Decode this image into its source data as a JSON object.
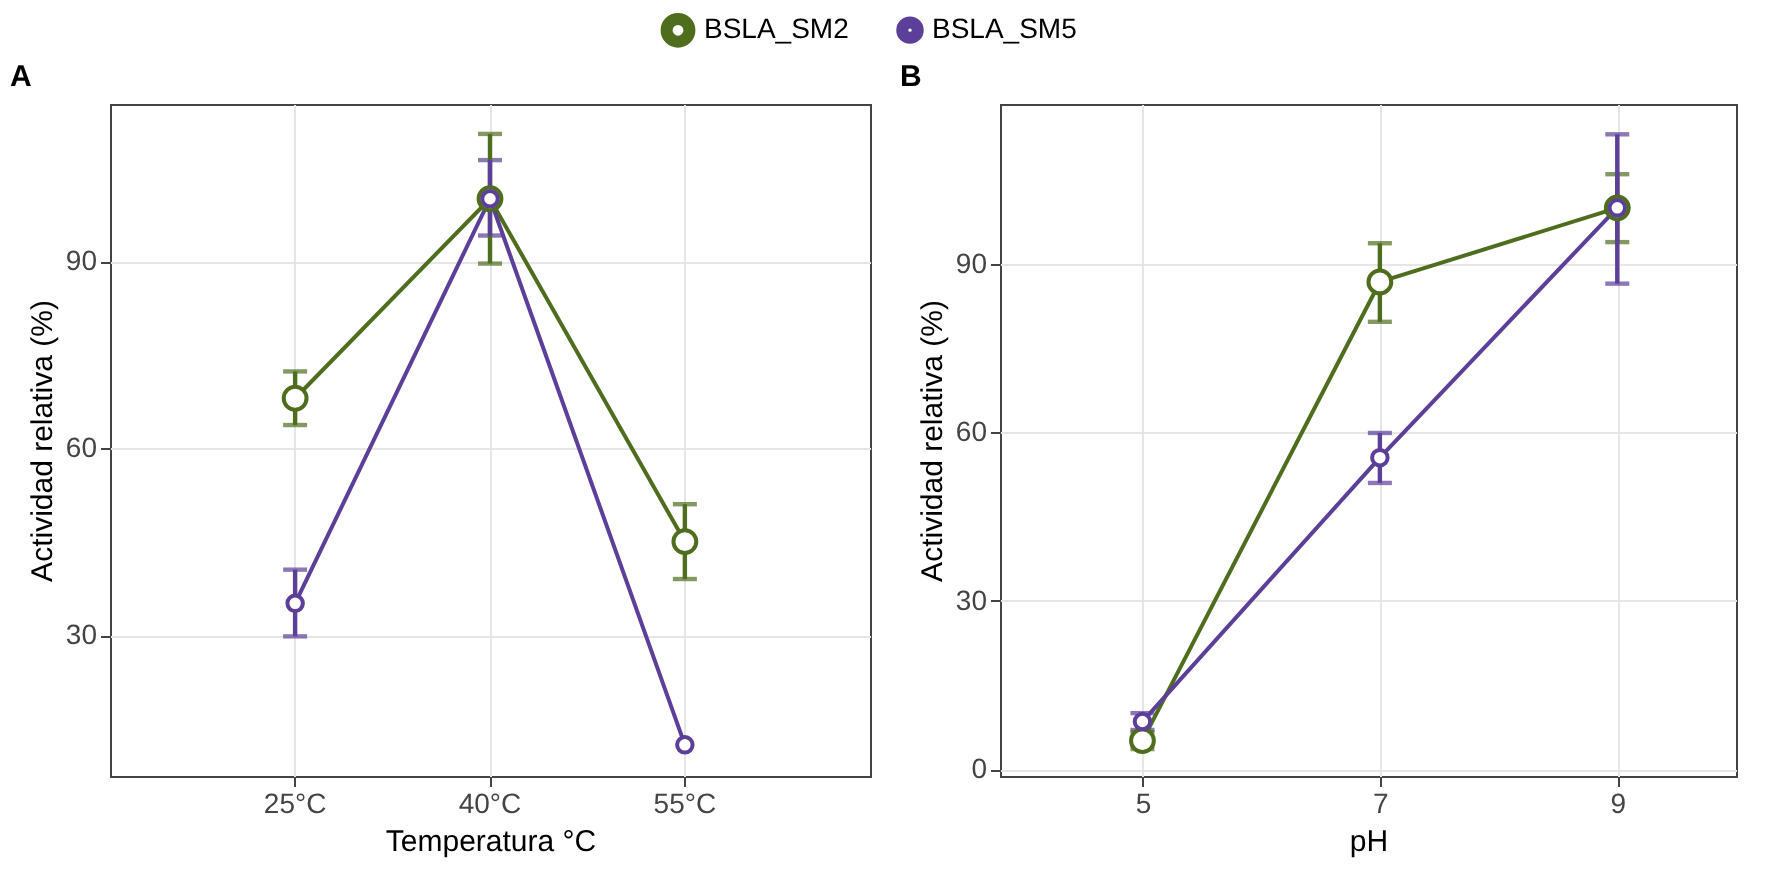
{
  "chart_data": [
    {
      "type": "line",
      "title": "A",
      "xlabel": "Temperatura °C",
      "ylabel": "Actividad relativa (%)",
      "categories": [
        "25°C",
        "40°C",
        "55°C"
      ],
      "ylim": [
        7.4,
        115.2
      ],
      "yticks": [
        30,
        60,
        90
      ],
      "grid": true,
      "legend": "top",
      "marker": "circle",
      "line_style": "solid",
      "series": [
        {
          "name": "BSLA_SM2",
          "color": "#4e6e1e",
          "values": [
            68,
            100,
            45
          ],
          "errors": [
            [
              63.7,
              72.3
            ],
            [
              89.6,
              110.4
            ],
            [
              39,
              51
            ]
          ]
        },
        {
          "name": "BSLA_SM5",
          "color": "#5b3f98",
          "values": [
            35.1,
            100,
            12.4
          ],
          "errors": [
            [
              29.8,
              40.5
            ],
            [
              94.1,
              106.2
            ],
            null
          ]
        }
      ]
    },
    {
      "type": "line",
      "title": "B",
      "xlabel": "pH",
      "ylabel": "Actividad relativa (%)",
      "x": [
        5,
        7,
        9
      ],
      "xlim": [
        3.8,
        10
      ],
      "xticks": [
        5,
        7,
        9
      ],
      "ylim": [
        -1.2,
        118.5
      ],
      "yticks": [
        0,
        30,
        60,
        90
      ],
      "grid": true,
      "legend": "top",
      "marker": "circle",
      "line_style": "solid",
      "series": [
        {
          "name": "BSLA_SM2",
          "color": "#4e6e1e",
          "values": [
            5.1,
            86.8,
            100
          ],
          "errors": [
            [
              3.6,
              6.6
            ],
            [
              79.7,
              93.7
            ],
            [
              93.9,
              106
            ]
          ]
        },
        {
          "name": "BSLA_SM5",
          "color": "#5b3f98",
          "values": [
            8.5,
            55.5,
            100
          ],
          "errors": [
            [
              7,
              10
            ],
            [
              51,
              59.9
            ],
            [
              86.5,
              113.1
            ]
          ]
        }
      ]
    }
  ]
}
